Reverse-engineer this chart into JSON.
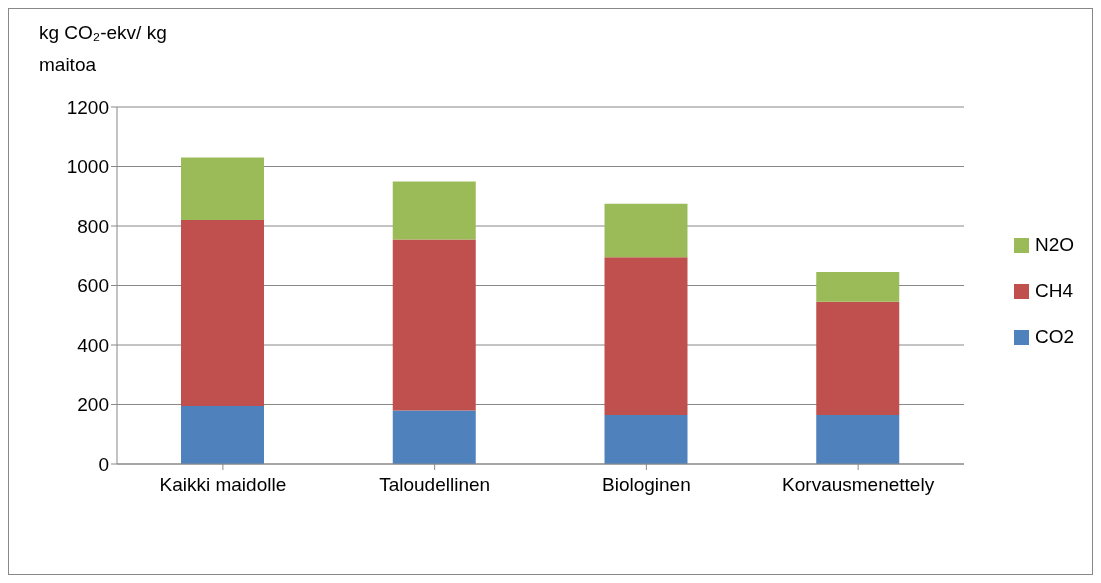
{
  "chart_data": {
    "type": "bar",
    "stacked": true,
    "ylabel": "kg CO₂-ekv/ kg maitoa",
    "categories": [
      "Kaikki maidolle",
      "Taloudellinen",
      "Biologinen",
      "Korvausmenettely"
    ],
    "series": [
      {
        "name": "CO2",
        "color": "#4f81bd",
        "values": [
          195,
          180,
          165,
          165
        ]
      },
      {
        "name": "CH4",
        "color": "#c0504d",
        "values": [
          625,
          575,
          530,
          380
        ]
      },
      {
        "name": "N2O",
        "color": "#9bbb59",
        "values": [
          210,
          195,
          180,
          100
        ]
      }
    ],
    "ylim": [
      0,
      1200
    ],
    "yticks": [
      0,
      200,
      400,
      600,
      800,
      1000,
      1200
    ],
    "grid": "y",
    "legend": "right"
  }
}
